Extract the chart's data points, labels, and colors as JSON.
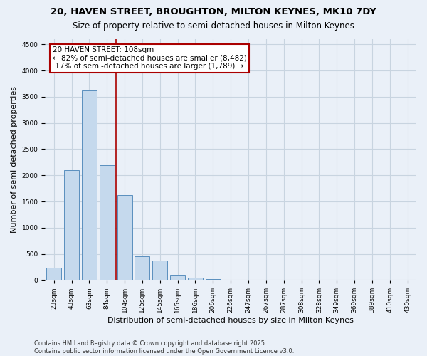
{
  "title_line1": "20, HAVEN STREET, BROUGHTON, MILTON KEYNES, MK10 7DY",
  "title_line2": "Size of property relative to semi-detached houses in Milton Keynes",
  "xlabel": "Distribution of semi-detached houses by size in Milton Keynes",
  "ylabel": "Number of semi-detached properties",
  "categories": [
    "23sqm",
    "43sqm",
    "63sqm",
    "84sqm",
    "104sqm",
    "125sqm",
    "145sqm",
    "165sqm",
    "186sqm",
    "206sqm",
    "226sqm",
    "247sqm",
    "267sqm",
    "287sqm",
    "308sqm",
    "328sqm",
    "349sqm",
    "369sqm",
    "389sqm",
    "410sqm",
    "430sqm"
  ],
  "values": [
    230,
    2100,
    3620,
    2200,
    1620,
    460,
    370,
    95,
    50,
    15,
    4,
    1,
    0,
    0,
    0,
    0,
    0,
    0,
    0,
    0,
    0
  ],
  "bar_color": "#c5d9ed",
  "bar_edge_color": "#5a8fbe",
  "grid_color": "#c8d4e0",
  "background_color": "#eaf0f8",
  "annotation_title": "20 HAVEN STREET: 108sqm",
  "annotation_line1": "← 82% of semi-detached houses are smaller (8,482)",
  "annotation_line2": " 17% of semi-detached houses are larger (1,789) →",
  "annotation_box_color": "#ffffff",
  "annotation_box_edge": "#aa0000",
  "vline_color": "#aa0000",
  "vline_x": 3.53,
  "ylim": [
    0,
    4600
  ],
  "yticks": [
    0,
    500,
    1000,
    1500,
    2000,
    2500,
    3000,
    3500,
    4000,
    4500
  ],
  "footnote1": "Contains HM Land Registry data © Crown copyright and database right 2025.",
  "footnote2": "Contains public sector information licensed under the Open Government Licence v3.0.",
  "title_fontsize": 9.5,
  "subtitle_fontsize": 8.5,
  "tick_fontsize": 6.5,
  "label_fontsize": 8,
  "annot_fontsize": 7.5,
  "footnote_fontsize": 6
}
